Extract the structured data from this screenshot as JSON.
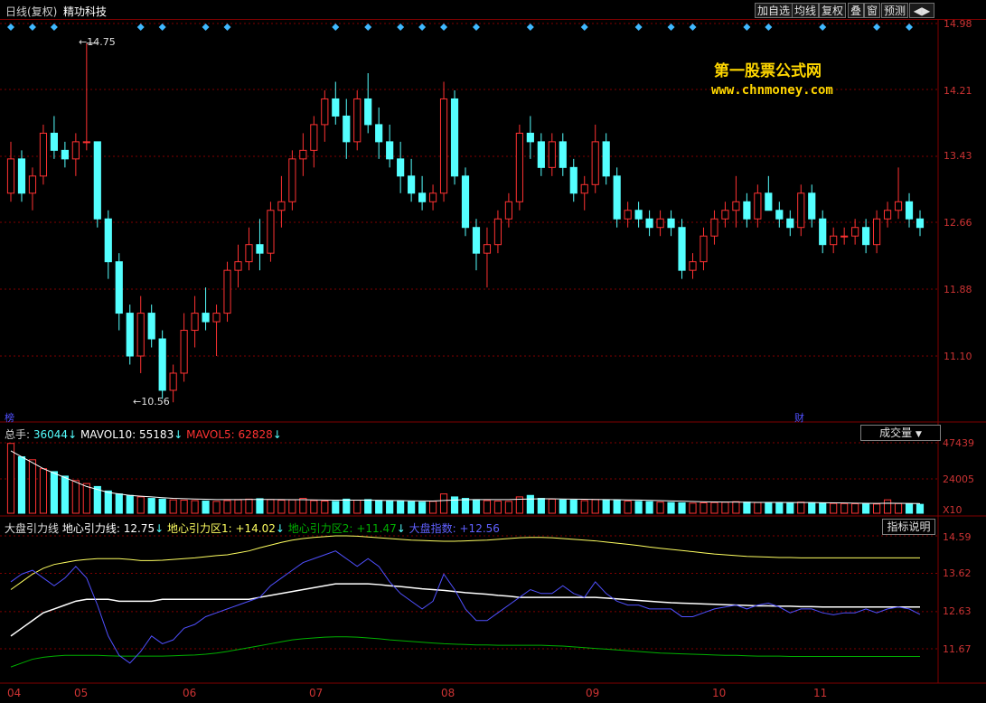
{
  "header": {
    "chart_title": "日线(复权)",
    "stock_name": "精功科技",
    "buttons": [
      "加自选",
      "均线",
      "复权",
      "叠",
      "窗",
      "预测"
    ]
  },
  "watermark": {
    "line1": "第一股票公式网",
    "line2": "www.chnmoney.com"
  },
  "price_panel": {
    "y_ticks": [
      "14.98",
      "14.21",
      "13.43",
      "12.66",
      "11.88",
      "11.10"
    ],
    "y_values": [
      14.98,
      14.21,
      13.43,
      12.66,
      11.88,
      11.1
    ],
    "high_marker": "14.75",
    "low_marker": "10.56",
    "left_tag": "榜",
    "right_tag": "财"
  },
  "volume_panel": {
    "legend_total_label": "总手:",
    "legend_total_value": "36044",
    "legend_mavol10_label": "MAVOL10:",
    "legend_mavol10_value": "55183",
    "legend_mavol5_label": "MAVOL5:",
    "legend_mavol5_value": "62828",
    "dropdown": "成交量",
    "y_ticks": [
      "47439",
      "24005",
      "X10"
    ]
  },
  "indicator_panel": {
    "name": "大盘引力线",
    "l1_label": "地心引力线:",
    "l1_value": "12.75",
    "l2_label": "地心引力区1:",
    "l2_value": "+14.02",
    "l3_label": "地心引力区2:",
    "l3_value": "+11.47",
    "l4_label": "大盘指数:",
    "l4_value": "+12.56",
    "help_button": "指标说明",
    "y_ticks": [
      "14.59",
      "13.62",
      "12.63",
      "11.67"
    ]
  },
  "x_axis": {
    "labels": [
      "04",
      "05",
      "06",
      "07",
      "08",
      "09",
      "10",
      "11"
    ]
  },
  "colors": {
    "up": "#ff3232",
    "down": "#54ffff",
    "grid": "#800000",
    "yellow": "#ffff60",
    "white": "#ffffff",
    "green": "#00b000",
    "blue": "#5050ff"
  },
  "chart_data": {
    "type": "candlestick",
    "y_range": [
      10.56,
      14.98
    ],
    "ohlc": [
      [
        13.0,
        13.6,
        12.9,
        13.4
      ],
      [
        13.4,
        13.5,
        12.9,
        13.0
      ],
      [
        13.0,
        13.3,
        12.8,
        13.2
      ],
      [
        13.2,
        13.8,
        13.1,
        13.7
      ],
      [
        13.7,
        13.9,
        13.4,
        13.5
      ],
      [
        13.5,
        13.6,
        13.3,
        13.4
      ],
      [
        13.4,
        13.7,
        13.2,
        13.6
      ],
      [
        13.6,
        14.75,
        13.5,
        13.6
      ],
      [
        13.6,
        13.6,
        12.6,
        12.7
      ],
      [
        12.7,
        12.8,
        12.0,
        12.2
      ],
      [
        12.2,
        12.3,
        11.4,
        11.6
      ],
      [
        11.6,
        11.7,
        11.0,
        11.1
      ],
      [
        11.1,
        11.8,
        10.9,
        11.6
      ],
      [
        11.6,
        11.7,
        11.2,
        11.3
      ],
      [
        11.3,
        11.4,
        10.6,
        10.7
      ],
      [
        10.7,
        11.0,
        10.56,
        10.9
      ],
      [
        10.9,
        11.6,
        10.8,
        11.4
      ],
      [
        11.4,
        11.8,
        11.2,
        11.6
      ],
      [
        11.6,
        11.9,
        11.4,
        11.5
      ],
      [
        11.5,
        11.7,
        11.1,
        11.6
      ],
      [
        11.6,
        12.2,
        11.5,
        12.1
      ],
      [
        12.1,
        12.4,
        11.9,
        12.2
      ],
      [
        12.2,
        12.6,
        12.1,
        12.4
      ],
      [
        12.4,
        12.7,
        12.1,
        12.3
      ],
      [
        12.3,
        12.9,
        12.2,
        12.8
      ],
      [
        12.8,
        13.2,
        12.6,
        12.9
      ],
      [
        12.9,
        13.5,
        12.8,
        13.4
      ],
      [
        13.4,
        13.7,
        13.2,
        13.5
      ],
      [
        13.5,
        13.9,
        13.3,
        13.8
      ],
      [
        13.8,
        14.2,
        13.6,
        14.1
      ],
      [
        14.1,
        14.3,
        13.8,
        13.9
      ],
      [
        13.9,
        14.1,
        13.4,
        13.6
      ],
      [
        13.6,
        14.2,
        13.5,
        14.1
      ],
      [
        14.1,
        14.4,
        13.7,
        13.8
      ],
      [
        13.8,
        14.0,
        13.4,
        13.6
      ],
      [
        13.6,
        13.8,
        13.3,
        13.4
      ],
      [
        13.4,
        13.6,
        13.0,
        13.2
      ],
      [
        13.2,
        13.4,
        12.9,
        13.0
      ],
      [
        13.0,
        13.2,
        12.8,
        12.9
      ],
      [
        12.9,
        13.1,
        12.8,
        13.0
      ],
      [
        13.0,
        14.3,
        12.9,
        14.1
      ],
      [
        14.1,
        14.2,
        13.1,
        13.2
      ],
      [
        13.2,
        13.3,
        12.5,
        12.6
      ],
      [
        12.6,
        12.7,
        12.1,
        12.3
      ],
      [
        12.3,
        12.6,
        11.9,
        12.4
      ],
      [
        12.4,
        12.8,
        12.3,
        12.7
      ],
      [
        12.7,
        13.0,
        12.6,
        12.9
      ],
      [
        12.9,
        13.8,
        12.8,
        13.7
      ],
      [
        13.7,
        13.9,
        13.4,
        13.6
      ],
      [
        13.6,
        13.7,
        13.2,
        13.3
      ],
      [
        13.3,
        13.7,
        13.2,
        13.6
      ],
      [
        13.6,
        13.7,
        13.2,
        13.3
      ],
      [
        13.3,
        13.4,
        12.9,
        13.0
      ],
      [
        13.0,
        13.2,
        12.8,
        13.1
      ],
      [
        13.1,
        13.8,
        13.0,
        13.6
      ],
      [
        13.6,
        13.7,
        13.1,
        13.2
      ],
      [
        13.2,
        13.3,
        12.6,
        12.7
      ],
      [
        12.7,
        12.9,
        12.6,
        12.8
      ],
      [
        12.8,
        12.9,
        12.6,
        12.7
      ],
      [
        12.7,
        12.8,
        12.5,
        12.6
      ],
      [
        12.6,
        12.8,
        12.5,
        12.7
      ],
      [
        12.7,
        12.8,
        12.5,
        12.6
      ],
      [
        12.6,
        12.7,
        12.0,
        12.1
      ],
      [
        12.1,
        12.3,
        12.0,
        12.2
      ],
      [
        12.2,
        12.6,
        12.1,
        12.5
      ],
      [
        12.5,
        12.8,
        12.4,
        12.7
      ],
      [
        12.7,
        12.9,
        12.6,
        12.8
      ],
      [
        12.8,
        13.2,
        12.6,
        12.9
      ],
      [
        12.9,
        13.0,
        12.6,
        12.7
      ],
      [
        12.7,
        13.1,
        12.6,
        13.0
      ],
      [
        13.0,
        13.2,
        12.8,
        12.8
      ],
      [
        12.8,
        12.9,
        12.6,
        12.7
      ],
      [
        12.7,
        12.8,
        12.5,
        12.6
      ],
      [
        12.6,
        13.1,
        12.5,
        13.0
      ],
      [
        13.0,
        13.1,
        12.6,
        12.7
      ],
      [
        12.7,
        12.8,
        12.3,
        12.4
      ],
      [
        12.4,
        12.6,
        12.3,
        12.5
      ],
      [
        12.5,
        12.6,
        12.4,
        12.5
      ],
      [
        12.5,
        12.7,
        12.4,
        12.6
      ],
      [
        12.6,
        12.7,
        12.3,
        12.4
      ],
      [
        12.4,
        12.8,
        12.3,
        12.7
      ],
      [
        12.7,
        12.9,
        12.6,
        12.8
      ],
      [
        12.8,
        13.3,
        12.7,
        12.9
      ],
      [
        12.9,
        13.0,
        12.6,
        12.7
      ],
      [
        12.7,
        12.8,
        12.5,
        12.6
      ]
    ],
    "volume": [
      47000,
      38000,
      36000,
      30000,
      28000,
      25000,
      22000,
      20000,
      18000,
      15000,
      13000,
      12000,
      11000,
      10000,
      9500,
      9000,
      8800,
      8500,
      8200,
      8000,
      8500,
      9000,
      9500,
      9800,
      9200,
      8800,
      9000,
      10000,
      8500,
      8200,
      8000,
      9500,
      8800,
      9200,
      8600,
      8300,
      8000,
      7800,
      7500,
      8000,
      13000,
      11000,
      10000,
      9000,
      8500,
      8200,
      8000,
      11000,
      12000,
      10000,
      9500,
      9000,
      8800,
      8500,
      9200,
      8800,
      8500,
      8200,
      8000,
      7800,
      7500,
      7200,
      7000,
      6800,
      7000,
      7200,
      7400,
      7800,
      7500,
      7200,
      7000,
      6900,
      6800,
      7500,
      7000,
      6800,
      6600,
      6500,
      6400,
      6300,
      6200,
      9000,
      6500,
      6200,
      6000
    ],
    "mavol10": [
      42000,
      38000,
      34000,
      30000,
      27000,
      24000,
      21000,
      18000,
      16000,
      14000,
      13000,
      12000,
      11500,
      11000,
      10500,
      10000,
      9800,
      9600,
      9400,
      9200,
      9200,
      9200,
      9300,
      9300,
      9300,
      9200,
      9100,
      9100,
      9000,
      8900,
      8800,
      8800,
      8800,
      8800,
      8700,
      8600,
      8500,
      8400,
      8300,
      8200,
      8600,
      8900,
      9100,
      9200,
      9200,
      9200,
      9200,
      9400,
      9600,
      9700,
      9700,
      9600,
      9500,
      9400,
      9300,
      9200,
      9100,
      9000,
      8900,
      8700,
      8500,
      8300,
      8100,
      7900,
      7700,
      7600,
      7500,
      7500,
      7400,
      7300,
      7300,
      7300,
      7200,
      7200,
      7200,
      7100,
      7000,
      6900,
      6800,
      6700,
      6600,
      6800,
      6700,
      6600,
      6500
    ],
    "dadi_line": [
      12.0,
      12.2,
      12.4,
      12.6,
      12.7,
      12.8,
      12.9,
      12.95,
      12.95,
      12.95,
      12.9,
      12.9,
      12.9,
      12.9,
      12.95,
      12.95,
      12.95,
      12.95,
      12.95,
      12.95,
      12.95,
      12.95,
      12.95,
      13.0,
      13.05,
      13.1,
      13.15,
      13.2,
      13.25,
      13.3,
      13.35,
      13.35,
      13.35,
      13.35,
      13.33,
      13.3,
      13.28,
      13.25,
      13.22,
      13.2,
      13.18,
      13.15,
      13.12,
      13.1,
      13.08,
      13.05,
      13.03,
      13.0,
      13.0,
      13.0,
      13.0,
      13.0,
      13.0,
      13.0,
      13.0,
      12.98,
      12.96,
      12.94,
      12.92,
      12.9,
      12.88,
      12.86,
      12.85,
      12.84,
      12.83,
      12.82,
      12.81,
      12.8,
      12.79,
      12.78,
      12.78,
      12.77,
      12.77,
      12.76,
      12.76,
      12.75,
      12.75,
      12.75,
      12.75,
      12.75,
      12.75,
      12.75,
      12.75,
      12.75,
      12.75
    ],
    "zone1": [
      13.2,
      13.4,
      13.6,
      13.75,
      13.85,
      13.9,
      13.95,
      13.98,
      14.0,
      14.0,
      14.0,
      13.98,
      13.95,
      13.95,
      13.96,
      13.98,
      14.0,
      14.02,
      14.05,
      14.08,
      14.1,
      14.15,
      14.2,
      14.28,
      14.35,
      14.42,
      14.48,
      14.52,
      14.55,
      14.57,
      14.59,
      14.59,
      14.58,
      14.56,
      14.54,
      14.52,
      14.5,
      14.48,
      14.47,
      14.46,
      14.45,
      14.45,
      14.46,
      14.47,
      14.48,
      14.5,
      14.52,
      14.54,
      14.55,
      14.55,
      14.54,
      14.52,
      14.5,
      14.48,
      14.46,
      14.43,
      14.4,
      14.37,
      14.34,
      14.3,
      14.27,
      14.24,
      14.21,
      14.18,
      14.15,
      14.12,
      14.1,
      14.08,
      14.06,
      14.05,
      14.04,
      14.03,
      14.03,
      14.02,
      14.02,
      14.02,
      14.02,
      14.02,
      14.02,
      14.02,
      14.02,
      14.02,
      14.02,
      14.02,
      14.02
    ],
    "zone2": [
      11.2,
      11.3,
      11.4,
      11.45,
      11.48,
      11.5,
      11.5,
      11.5,
      11.5,
      11.49,
      11.48,
      11.48,
      11.48,
      11.48,
      11.48,
      11.49,
      11.5,
      11.51,
      11.53,
      11.56,
      11.6,
      11.65,
      11.7,
      11.75,
      11.8,
      11.85,
      11.9,
      11.93,
      11.95,
      11.97,
      11.98,
      11.98,
      11.97,
      11.95,
      11.93,
      11.9,
      11.88,
      11.86,
      11.84,
      11.82,
      11.8,
      11.79,
      11.78,
      11.77,
      11.77,
      11.76,
      11.76,
      11.76,
      11.76,
      11.76,
      11.75,
      11.74,
      11.72,
      11.7,
      11.68,
      11.66,
      11.64,
      11.62,
      11.6,
      11.58,
      11.56,
      11.55,
      11.54,
      11.53,
      11.52,
      11.51,
      11.5,
      11.5,
      11.49,
      11.48,
      11.48,
      11.48,
      11.47,
      11.47,
      11.47,
      11.47,
      11.47,
      11.47,
      11.47,
      11.47,
      11.47,
      11.47,
      11.47,
      11.47,
      11.47
    ],
    "index_line": [
      13.4,
      13.6,
      13.7,
      13.5,
      13.3,
      13.5,
      13.8,
      13.5,
      12.8,
      12.0,
      11.5,
      11.3,
      11.6,
      12.0,
      11.8,
      11.9,
      12.2,
      12.3,
      12.5,
      12.6,
      12.7,
      12.8,
      12.9,
      13.0,
      13.3,
      13.5,
      13.7,
      13.9,
      14.0,
      14.1,
      14.2,
      14.0,
      13.8,
      14.0,
      13.8,
      13.4,
      13.1,
      12.9,
      12.7,
      12.9,
      13.6,
      13.2,
      12.7,
      12.4,
      12.4,
      12.6,
      12.8,
      13.0,
      13.2,
      13.1,
      13.1,
      13.3,
      13.1,
      13.0,
      13.4,
      13.1,
      12.9,
      12.8,
      12.8,
      12.7,
      12.7,
      12.7,
      12.5,
      12.5,
      12.6,
      12.7,
      12.75,
      12.8,
      12.7,
      12.8,
      12.85,
      12.75,
      12.6,
      12.7,
      12.7,
      12.6,
      12.55,
      12.6,
      12.6,
      12.7,
      12.6,
      12.7,
      12.75,
      12.7,
      12.56
    ],
    "signal_diamonds": [
      0,
      2,
      4,
      12,
      14,
      18,
      20,
      30,
      33,
      36,
      38,
      40,
      43,
      48,
      53,
      58,
      61,
      63,
      68,
      70,
      75,
      80,
      83
    ]
  }
}
